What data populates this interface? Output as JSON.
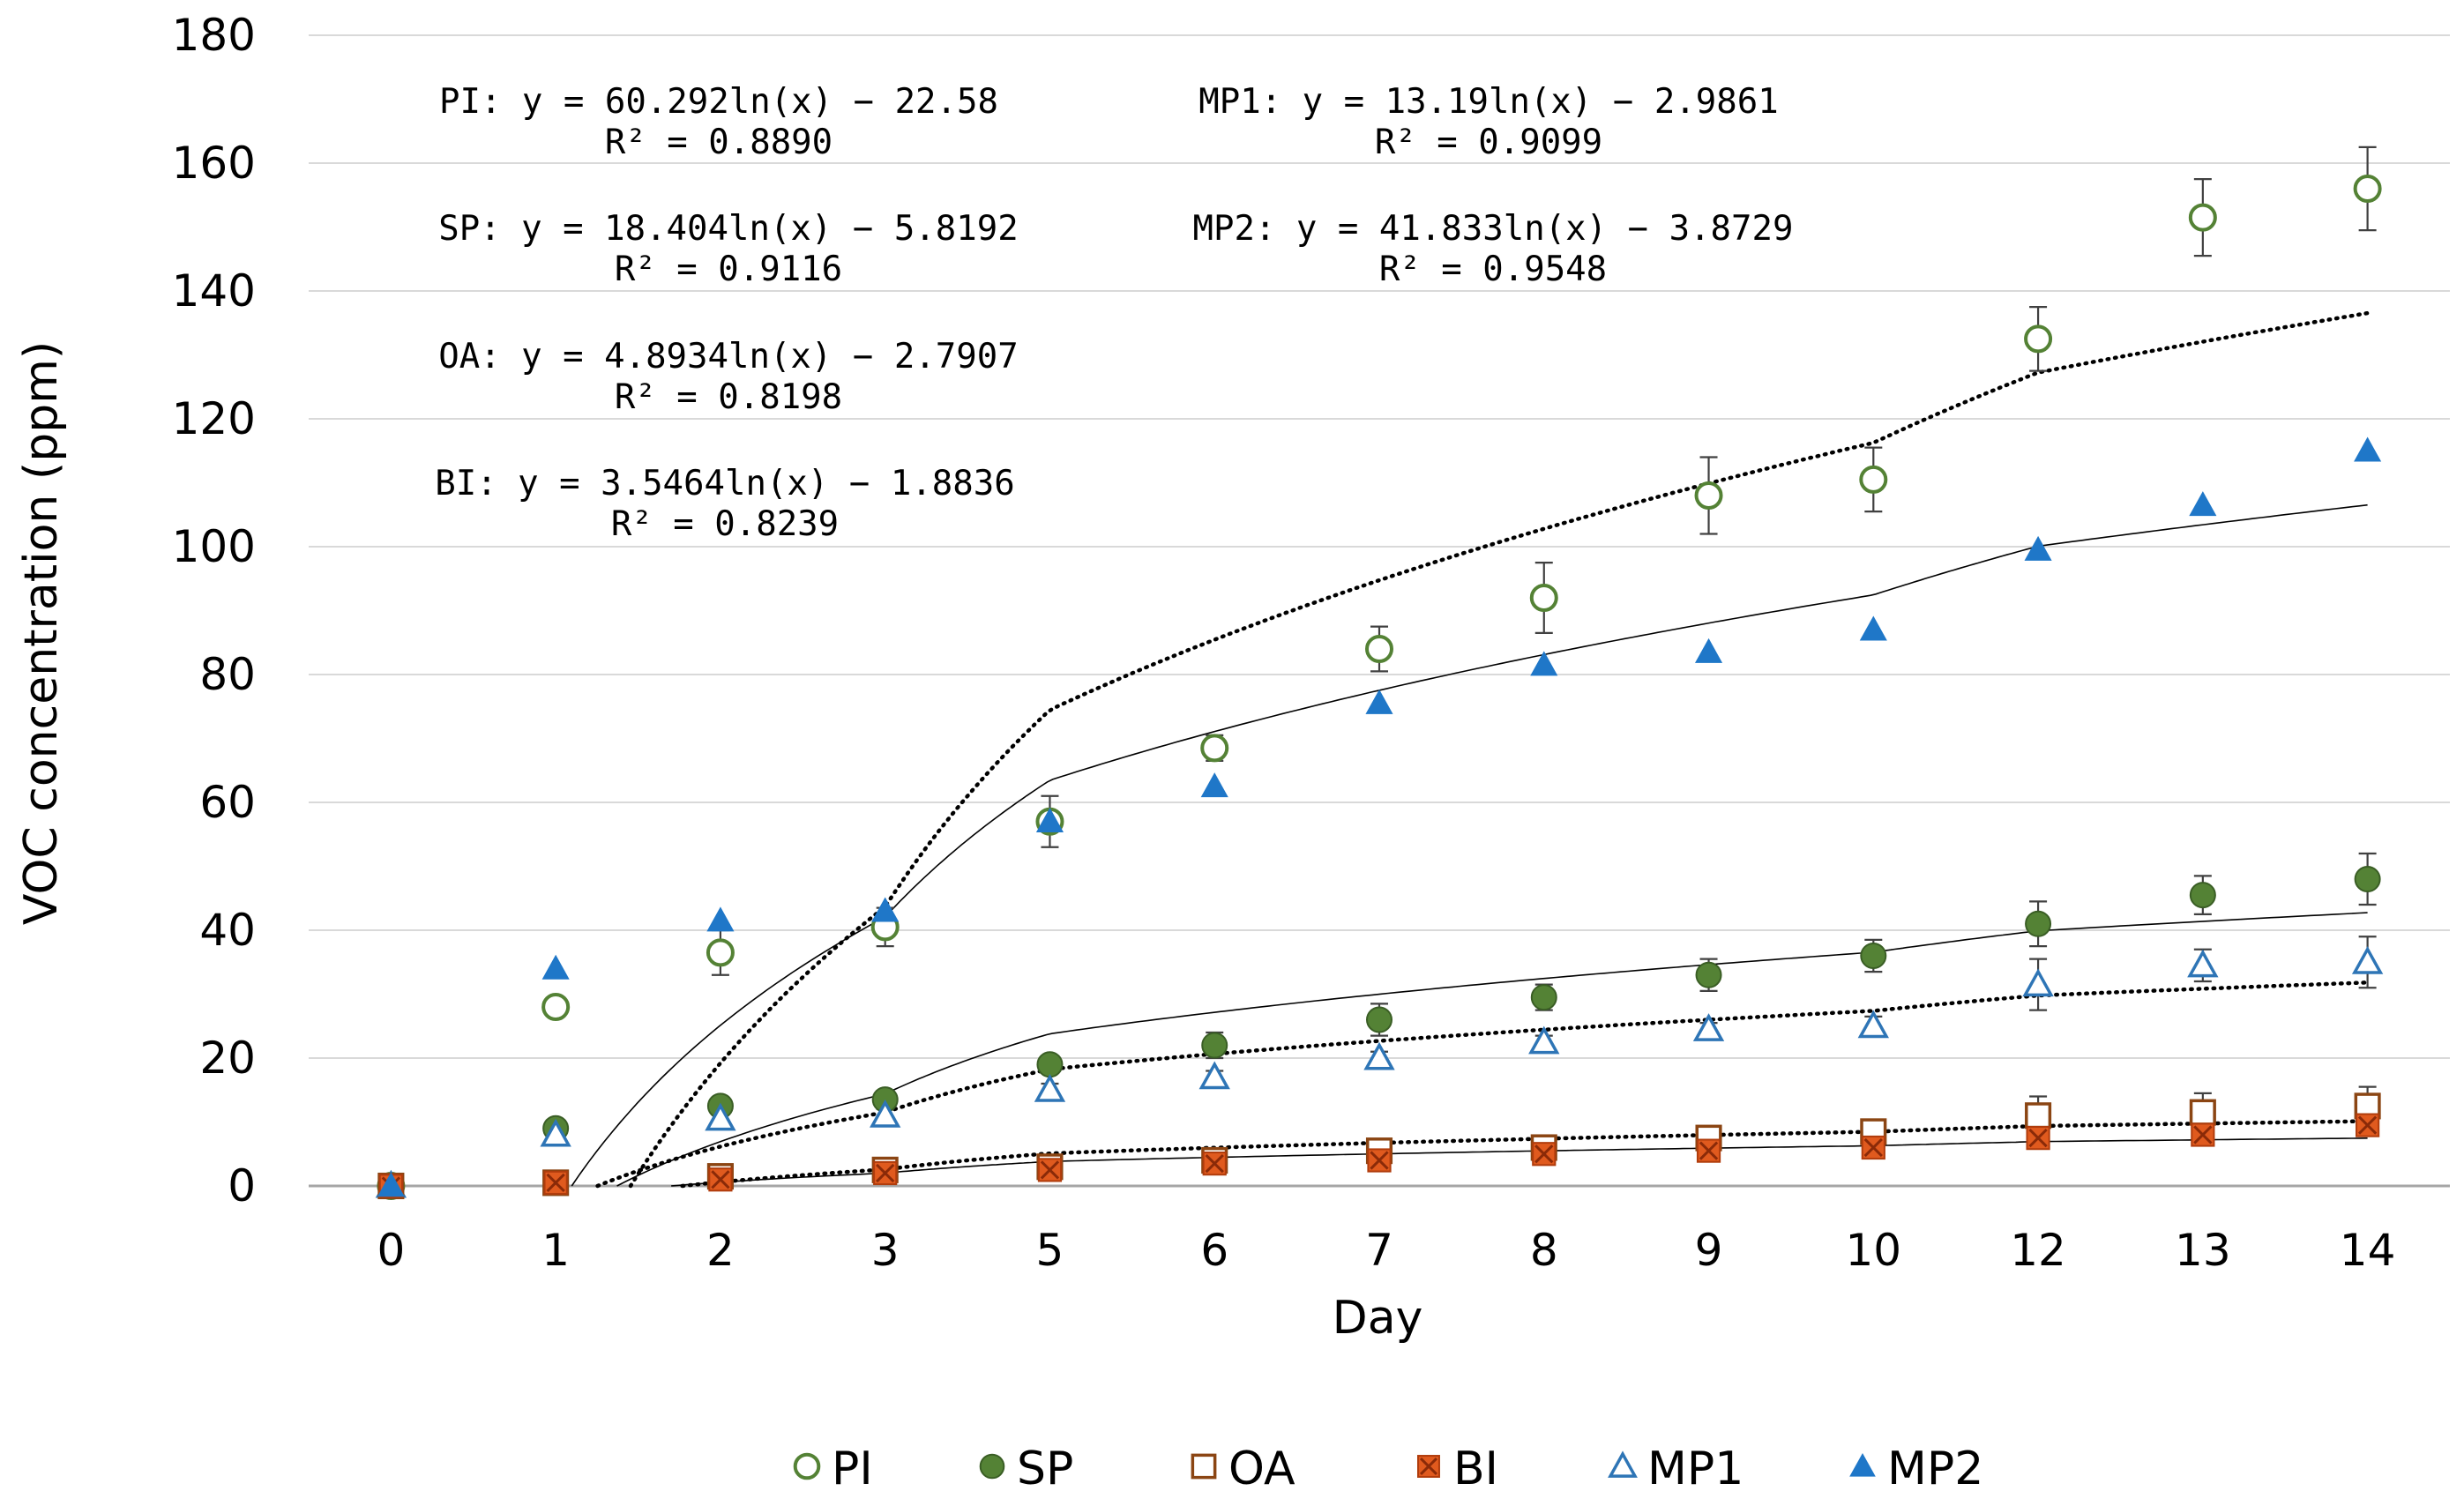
{
  "chart_data": {
    "type": "scatter",
    "xlabel": "Day",
    "ylabel": "VOC concentration (ppm)",
    "ylim": [
      0,
      180
    ],
    "yticks": [
      0,
      20,
      40,
      60,
      80,
      100,
      120,
      140,
      160,
      180
    ],
    "x": [
      0,
      1,
      2,
      3,
      5,
      6,
      7,
      8,
      9,
      10,
      12,
      13,
      14
    ],
    "x_labels": [
      "0",
      "1",
      "2",
      "3",
      "5",
      "6",
      "7",
      "8",
      "9",
      "10",
      "12",
      "13",
      "14"
    ],
    "grid": "horizontal",
    "legend_position": "bottom",
    "series": [
      {
        "name": "PI",
        "marker": "open-circle",
        "color": "#548235",
        "values": [
          0,
          28,
          36.5,
          40.5,
          57,
          68.5,
          84,
          92,
          108,
          110.5,
          132.5,
          151.5,
          156
        ],
        "errors": [
          0,
          1,
          3.5,
          3,
          4,
          2,
          3.5,
          5.5,
          6,
          5,
          5,
          6,
          6.5
        ],
        "trend": {
          "a": 60.292,
          "b": -22.58,
          "style": "dotted"
        }
      },
      {
        "name": "SP",
        "marker": "filled-circle",
        "color": "#548235",
        "values": [
          0,
          9,
          12.5,
          13.5,
          19,
          22,
          26,
          29.5,
          33,
          36,
          41,
          45.5,
          48
        ],
        "errors": [
          0,
          1,
          1,
          1,
          1,
          2,
          2.5,
          2,
          2.5,
          2.5,
          3.5,
          3,
          4
        ],
        "trend": {
          "a": 18.404,
          "b": -5.8192,
          "style": "solid"
        }
      },
      {
        "name": "OA",
        "marker": "open-square",
        "color": "#8B4513",
        "values": [
          0,
          0.5,
          1.5,
          2.5,
          3,
          4,
          5.5,
          6,
          7.5,
          8.5,
          11,
          11.5,
          12.5
        ],
        "errors": [
          0,
          0,
          0,
          0,
          0,
          0,
          0,
          0,
          0,
          0,
          3,
          3,
          3
        ],
        "trend": {
          "a": 4.8934,
          "b": -2.7907,
          "style": "dotted"
        }
      },
      {
        "name": "BI",
        "marker": "filled-square-x",
        "color": "#E05A1E",
        "values": [
          0,
          0.5,
          1,
          2,
          2.5,
          3.5,
          4,
          5,
          5.5,
          6,
          7.5,
          8,
          9.5
        ],
        "errors": [
          0,
          0,
          0,
          0,
          0,
          0,
          0,
          0,
          0,
          0,
          0,
          0,
          0
        ],
        "trend": {
          "a": 3.5464,
          "b": -1.8836,
          "style": "solid"
        }
      },
      {
        "name": "MP1",
        "marker": "open-triangle",
        "color": "#2E75B6",
        "values": [
          0,
          8,
          10.5,
          11,
          15,
          17,
          20,
          22.5,
          24.5,
          25,
          31.5,
          34.5,
          35
        ],
        "errors": [
          0,
          1,
          1,
          1,
          1,
          1,
          1,
          1,
          1,
          1.5,
          4,
          2.5,
          4
        ],
        "trend": {
          "a": 13.19,
          "b": -2.9861,
          "style": "dotted"
        }
      },
      {
        "name": "MP2",
        "marker": "filled-triangle",
        "color": "#1F77C8",
        "values": [
          0,
          34,
          41.5,
          43,
          57,
          62.5,
          75.5,
          81.5,
          83.5,
          87,
          99.5,
          106.5,
          115
        ],
        "errors": [
          0,
          0,
          0,
          0,
          0,
          0,
          0,
          0,
          0,
          0,
          0,
          0,
          0
        ],
        "trend": {
          "a": 41.833,
          "b": -3.8729,
          "style": "solid"
        }
      }
    ],
    "annotations": [
      {
        "line1": "PI: y = 60.292ln(x) − 22.58",
        "line2": "R² = 0.8890"
      },
      {
        "line1": "MP1: y = 13.19ln(x) − 2.9861",
        "line2": "R² = 0.9099"
      },
      {
        "line1": "SP: y = 18.404ln(x) − 5.8192",
        "line2": "R² = 0.9116"
      },
      {
        "line1": "MP2: y = 41.833ln(x) − 3.8729",
        "line2": "R² = 0.9548"
      },
      {
        "line1": "OA: y = 4.8934ln(x) − 2.7907",
        "line2": "R² = 0.8198"
      },
      {
        "line1": "BI: y = 3.5464ln(x) − 1.8836",
        "line2": "R² = 0.8239"
      }
    ]
  }
}
